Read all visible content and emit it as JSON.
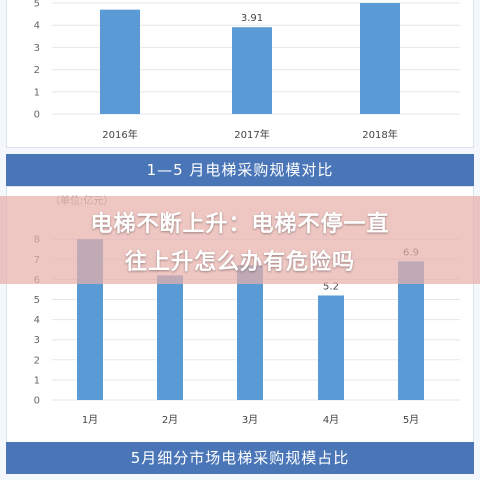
{
  "headline": {
    "line1": "电梯不断上升：电梯不停一直",
    "line2": "往上升怎么办有危险吗"
  },
  "banners": {
    "top": "1—5 月电梯采购规模对比",
    "bottom": "5月细分市场电梯采购规模占比"
  },
  "colors": {
    "bar": "#5b9bd5",
    "banner": "#4a76b8",
    "grid": "#e3e8ee"
  },
  "chart_data": [
    {
      "type": "bar",
      "categories": [
        "2016年",
        "2017年",
        "2018年"
      ],
      "values": [
        4.7,
        3.91,
        5.0
      ],
      "data_labels": [
        "",
        "3.91",
        ""
      ],
      "yticks": [
        "0",
        "1",
        "2",
        "3",
        "4",
        "5"
      ],
      "ylim": [
        0,
        5
      ],
      "grid": true
    },
    {
      "type": "bar",
      "title": "1—5 月电梯采购规模对比",
      "unit": "（单位:亿元）",
      "categories": [
        "1月",
        "2月",
        "3月",
        "4月",
        "5月"
      ],
      "values": [
        8.0,
        6.2,
        6.7,
        5.2,
        6.9
      ],
      "data_labels": [
        "",
        "",
        "",
        "5.2",
        "6.9"
      ],
      "yticks": [
        "0",
        "1",
        "2",
        "3",
        "4",
        "5",
        "6",
        "7",
        "8"
      ],
      "ylim": [
        0,
        8
      ],
      "grid": true
    }
  ]
}
